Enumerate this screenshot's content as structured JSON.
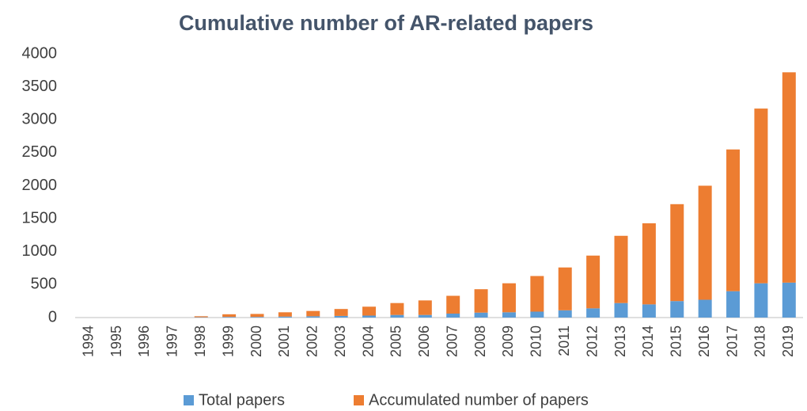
{
  "chart_data": {
    "type": "stacked_bar",
    "title": "Cumulative number of AR-related papers",
    "categories": [
      "1994",
      "1995",
      "1996",
      "1997",
      "1998",
      "1999",
      "2000",
      "2001",
      "2002",
      "2003",
      "2004",
      "2005",
      "2006",
      "2007",
      "2008",
      "2009",
      "2010",
      "2011",
      "2012",
      "2013",
      "2014",
      "2015",
      "2016",
      "2017",
      "2018",
      "2019"
    ],
    "series": [
      {
        "name": "Total papers",
        "color": "#5b9bd5",
        "values": [
          0,
          0,
          0,
          0,
          5,
          10,
          10,
          15,
          20,
          25,
          30,
          40,
          40,
          60,
          75,
          80,
          90,
          110,
          140,
          220,
          200,
          250,
          270,
          400,
          520,
          530
        ]
      },
      {
        "name": "Accumulated number of papers",
        "color": "#ed7d31",
        "values": [
          0,
          0,
          0,
          0,
          15,
          40,
          45,
          65,
          80,
          105,
          135,
          180,
          220,
          270,
          355,
          440,
          540,
          650,
          800,
          1020,
          1230,
          1470,
          1730,
          2150,
          2650,
          3190
        ]
      }
    ],
    "ylim": [
      0,
      4000
    ],
    "yticks": [
      0,
      500,
      1000,
      1500,
      2000,
      2500,
      3000,
      3500,
      4000
    ],
    "grid": false,
    "legend": "bottom"
  }
}
